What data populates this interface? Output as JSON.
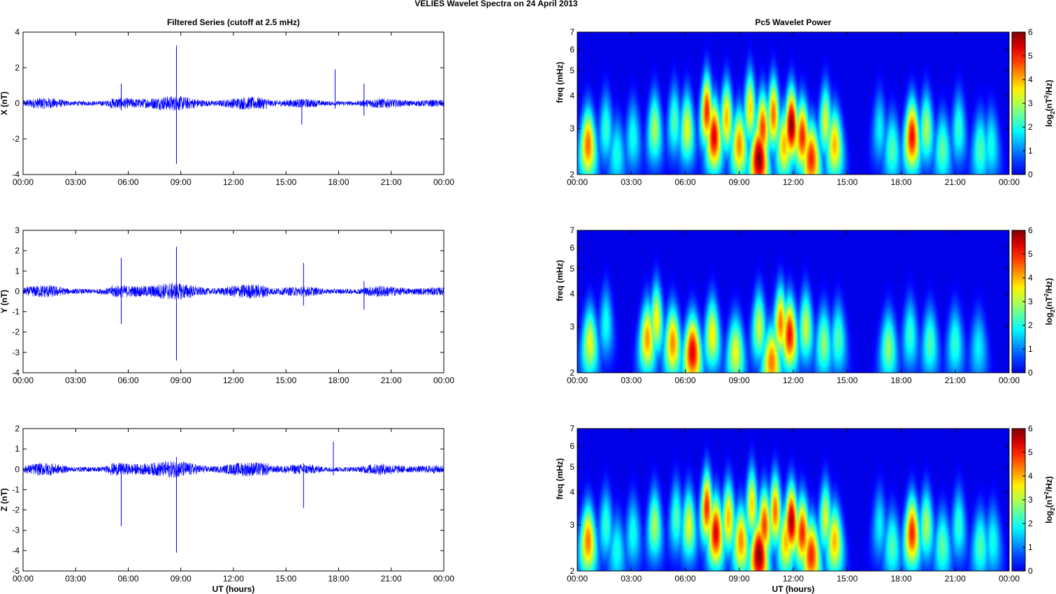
{
  "figure": {
    "suptitle": "VELIES Wavelet Spectra on 24 April     2013",
    "left_title": "Filtered Series (cutoff at 2.5 mHz)",
    "right_title": "Pc5 Wavelet Power",
    "xlabel": "UT (hours)",
    "colorbar_label": "log2(nT2/Hz)",
    "colorbar_label_parts": [
      "log",
      "2",
      "(nT",
      "2",
      "/Hz)"
    ],
    "colors": {
      "trace": "#0000ff",
      "background": "#00008f"
    }
  },
  "chart_data": [
    {
      "type": "line",
      "name": "x-series",
      "title": "Filtered Series (cutoff at 2.5 mHz)",
      "xlabel": "",
      "ylabel": "X (nT)",
      "xlim": [
        0,
        24
      ],
      "ylim": [
        -4,
        4
      ],
      "xticks": [
        "00:00",
        "03:00",
        "06:00",
        "09:00",
        "12:00",
        "15:00",
        "18:00",
        "21:00",
        "00:00"
      ],
      "yticks": [
        "4",
        "2",
        "0",
        "-2",
        "-4"
      ],
      "noise_amplitude_nT": 0.25,
      "spikes": [
        {
          "t": 8.75,
          "min": -3.4,
          "max": 3.25
        },
        {
          "t": 17.8,
          "min": -0.3,
          "max": 1.9
        },
        {
          "t": 19.45,
          "min": -0.7,
          "max": 1.1
        },
        {
          "t": 5.6,
          "min": -0.4,
          "max": 1.1
        },
        {
          "t": 15.9,
          "min": -1.2,
          "max": 0.2
        }
      ]
    },
    {
      "type": "line",
      "name": "y-series",
      "title": "",
      "xlabel": "",
      "ylabel": "Y (nT)",
      "xlim": [
        0,
        24
      ],
      "ylim": [
        -4,
        3
      ],
      "xticks": [
        "00:00",
        "03:00",
        "06:00",
        "09:00",
        "12:00",
        "15:00",
        "18:00",
        "21:00",
        "00:00"
      ],
      "yticks": [
        "3",
        "2",
        "1",
        "0",
        "-1",
        "-2",
        "-3",
        "-4"
      ],
      "noise_amplitude_nT": 0.25,
      "spikes": [
        {
          "t": 8.75,
          "min": -3.4,
          "max": 2.2
        },
        {
          "t": 5.6,
          "min": -1.6,
          "max": 1.65
        },
        {
          "t": 16.0,
          "min": -0.7,
          "max": 1.4
        },
        {
          "t": 19.45,
          "min": -0.9,
          "max": 0.5
        }
      ]
    },
    {
      "type": "line",
      "name": "z-series",
      "title": "",
      "xlabel": "UT (hours)",
      "ylabel": "Z (nT)",
      "xlim": [
        0,
        24
      ],
      "ylim": [
        -5,
        2
      ],
      "xticks": [
        "00:00",
        "03:00",
        "06:00",
        "09:00",
        "12:00",
        "15:00",
        "18:00",
        "21:00",
        "00:00"
      ],
      "yticks": [
        "2",
        "1",
        "0",
        "-1",
        "-2",
        "-3",
        "-4",
        "-5"
      ],
      "noise_amplitude_nT": 0.25,
      "spikes": [
        {
          "t": 8.75,
          "min": -4.1,
          "max": 0.6
        },
        {
          "t": 5.6,
          "min": -2.8,
          "max": 0.3
        },
        {
          "t": 16.0,
          "min": -1.9,
          "max": 0.3
        },
        {
          "t": 17.7,
          "min": -0.3,
          "max": 1.35
        }
      ]
    },
    {
      "type": "heatmap",
      "name": "x-wavelet",
      "title": "Pc5 Wavelet Power",
      "xlabel": "",
      "ylabel": "freq (mHz)",
      "xlim": [
        0,
        24
      ],
      "ylim": [
        2,
        7
      ],
      "yscale": "log",
      "xticks": [
        "00:00",
        "03:00",
        "06:00",
        "09:00",
        "12:00",
        "15:00",
        "18:00",
        "21:00",
        "00:00"
      ],
      "yticks": [
        "7",
        "6",
        "5",
        "4",
        "3",
        "2"
      ],
      "colorbar": {
        "range": [
          0,
          6
        ],
        "ticks": [
          "6",
          "5",
          "4",
          "3",
          "2",
          "1",
          "0"
        ],
        "colormap": "jet"
      },
      "blobs": [
        {
          "t": 0.6,
          "f": 2.6,
          "v": 4.5
        },
        {
          "t": 1.6,
          "f": 3.0,
          "v": 2.2
        },
        {
          "t": 2.2,
          "f": 2.4,
          "v": 2.0
        },
        {
          "t": 3.1,
          "f": 2.8,
          "v": 2.0
        },
        {
          "t": 4.3,
          "f": 3.0,
          "v": 3.0
        },
        {
          "t": 5.4,
          "f": 3.2,
          "v": 2.4
        },
        {
          "t": 6.1,
          "f": 3.0,
          "v": 3.4
        },
        {
          "t": 7.2,
          "f": 3.5,
          "v": 5.0
        },
        {
          "t": 7.6,
          "f": 2.8,
          "v": 5.4
        },
        {
          "t": 8.3,
          "f": 3.3,
          "v": 4.0
        },
        {
          "t": 9.0,
          "f": 2.6,
          "v": 4.3
        },
        {
          "t": 9.6,
          "f": 3.6,
          "v": 3.8
        },
        {
          "t": 10.1,
          "f": 2.3,
          "v": 6.0
        },
        {
          "t": 10.3,
          "f": 3.0,
          "v": 4.8
        },
        {
          "t": 10.9,
          "f": 3.4,
          "v": 4.5
        },
        {
          "t": 11.5,
          "f": 2.6,
          "v": 4.0
        },
        {
          "t": 11.9,
          "f": 3.1,
          "v": 6.0
        },
        {
          "t": 12.5,
          "f": 2.8,
          "v": 5.0
        },
        {
          "t": 13.0,
          "f": 2.3,
          "v": 5.0
        },
        {
          "t": 13.8,
          "f": 3.2,
          "v": 3.3
        },
        {
          "t": 14.3,
          "f": 2.6,
          "v": 4.0
        },
        {
          "t": 16.8,
          "f": 3.0,
          "v": 1.8
        },
        {
          "t": 17.5,
          "f": 2.5,
          "v": 2.4
        },
        {
          "t": 18.6,
          "f": 2.8,
          "v": 5.2
        },
        {
          "t": 19.4,
          "f": 3.0,
          "v": 3.0
        },
        {
          "t": 20.3,
          "f": 2.5,
          "v": 2.5
        },
        {
          "t": 21.2,
          "f": 3.0,
          "v": 2.2
        },
        {
          "t": 22.4,
          "f": 2.5,
          "v": 2.4
        },
        {
          "t": 23.0,
          "f": 2.6,
          "v": 2.0
        }
      ]
    },
    {
      "type": "heatmap",
      "name": "y-wavelet",
      "title": "",
      "xlabel": "",
      "ylabel": "freq (mHz)",
      "xlim": [
        0,
        24
      ],
      "ylim": [
        2,
        7
      ],
      "yscale": "log",
      "xticks": [
        "00:00",
        "03:00",
        "06:00",
        "09:00",
        "12:00",
        "15:00",
        "18:00",
        "21:00",
        "00:00"
      ],
      "yticks": [
        "7",
        "6",
        "5",
        "4",
        "3",
        "2"
      ],
      "colorbar": {
        "range": [
          0,
          6
        ],
        "ticks": [
          "6",
          "5",
          "4",
          "3",
          "2",
          "1",
          "0"
        ],
        "colormap": "jet"
      },
      "blobs": [
        {
          "t": 0.7,
          "f": 2.6,
          "v": 3.4
        },
        {
          "t": 1.6,
          "f": 3.1,
          "v": 2.0
        },
        {
          "t": 3.9,
          "f": 2.7,
          "v": 4.2
        },
        {
          "t": 4.4,
          "f": 3.2,
          "v": 3.6
        },
        {
          "t": 5.3,
          "f": 2.6,
          "v": 4.3
        },
        {
          "t": 6.4,
          "f": 2.4,
          "v": 5.4
        },
        {
          "t": 7.5,
          "f": 2.8,
          "v": 3.6
        },
        {
          "t": 8.8,
          "f": 2.4,
          "v": 3.4
        },
        {
          "t": 10.1,
          "f": 3.0,
          "v": 3.2
        },
        {
          "t": 10.8,
          "f": 2.2,
          "v": 4.4
        },
        {
          "t": 11.3,
          "f": 3.1,
          "v": 4.4
        },
        {
          "t": 11.8,
          "f": 2.8,
          "v": 5.2
        },
        {
          "t": 12.7,
          "f": 3.0,
          "v": 3.2
        },
        {
          "t": 13.7,
          "f": 2.6,
          "v": 2.8
        },
        {
          "t": 14.5,
          "f": 2.7,
          "v": 2.4
        },
        {
          "t": 17.3,
          "f": 2.5,
          "v": 2.8
        },
        {
          "t": 18.5,
          "f": 2.8,
          "v": 2.2
        },
        {
          "t": 19.6,
          "f": 2.6,
          "v": 2.4
        },
        {
          "t": 21.0,
          "f": 2.6,
          "v": 2.2
        },
        {
          "t": 22.3,
          "f": 2.5,
          "v": 1.8
        }
      ]
    },
    {
      "type": "heatmap",
      "name": "z-wavelet",
      "title": "",
      "xlabel": "UT (hours)",
      "ylabel": "freq (mHz)",
      "xlim": [
        0,
        24
      ],
      "ylim": [
        2,
        7
      ],
      "yscale": "log",
      "xticks": [
        "00:00",
        "03:00",
        "06:00",
        "09:00",
        "12:00",
        "15:00",
        "18:00",
        "21:00",
        "00:00"
      ],
      "yticks": [
        "7",
        "6",
        "5",
        "4",
        "3",
        "2"
      ],
      "colorbar": {
        "range": [
          0,
          6
        ],
        "ticks": [
          "6",
          "5",
          "4",
          "3",
          "2",
          "1",
          "0"
        ],
        "colormap": "jet"
      },
      "blobs": [
        {
          "t": 0.6,
          "f": 2.6,
          "v": 4.4
        },
        {
          "t": 1.6,
          "f": 3.0,
          "v": 2.2
        },
        {
          "t": 2.2,
          "f": 2.4,
          "v": 2.0
        },
        {
          "t": 3.1,
          "f": 2.8,
          "v": 2.0
        },
        {
          "t": 4.3,
          "f": 3.0,
          "v": 3.0
        },
        {
          "t": 5.5,
          "f": 3.2,
          "v": 2.4
        },
        {
          "t": 6.2,
          "f": 3.0,
          "v": 3.4
        },
        {
          "t": 7.2,
          "f": 3.5,
          "v": 5.0
        },
        {
          "t": 7.7,
          "f": 2.8,
          "v": 5.4
        },
        {
          "t": 8.4,
          "f": 3.2,
          "v": 4.0
        },
        {
          "t": 9.1,
          "f": 2.6,
          "v": 4.3
        },
        {
          "t": 9.7,
          "f": 3.6,
          "v": 3.8
        },
        {
          "t": 10.1,
          "f": 2.3,
          "v": 6.0
        },
        {
          "t": 10.4,
          "f": 3.0,
          "v": 4.8
        },
        {
          "t": 11.0,
          "f": 3.4,
          "v": 4.5
        },
        {
          "t": 11.6,
          "f": 2.6,
          "v": 4.0
        },
        {
          "t": 11.9,
          "f": 3.1,
          "v": 5.8
        },
        {
          "t": 12.5,
          "f": 2.8,
          "v": 5.0
        },
        {
          "t": 13.0,
          "f": 2.3,
          "v": 5.0
        },
        {
          "t": 13.8,
          "f": 3.2,
          "v": 3.3
        },
        {
          "t": 14.3,
          "f": 2.6,
          "v": 4.0
        },
        {
          "t": 16.8,
          "f": 3.0,
          "v": 1.8
        },
        {
          "t": 17.5,
          "f": 2.5,
          "v": 2.4
        },
        {
          "t": 18.6,
          "f": 2.8,
          "v": 5.0
        },
        {
          "t": 19.4,
          "f": 3.0,
          "v": 3.0
        },
        {
          "t": 20.3,
          "f": 2.5,
          "v": 2.5
        },
        {
          "t": 21.2,
          "f": 3.0,
          "v": 2.2
        },
        {
          "t": 22.4,
          "f": 2.5,
          "v": 2.4
        },
        {
          "t": 23.1,
          "f": 2.6,
          "v": 2.0
        }
      ]
    }
  ]
}
